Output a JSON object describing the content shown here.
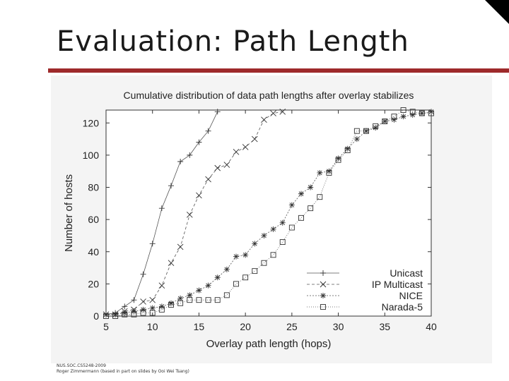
{
  "slide": {
    "title": "Evaluation: Path Length",
    "footer_line1": "NUS.SOC.CS5248-2009",
    "footer_line2": "Roger Zimmermann (based in part on slides by Ooi Wei Tsang)"
  },
  "colors": {
    "accent": "#9e2a2b",
    "chart_bg": "#f4f4f4"
  },
  "chart_data": {
    "type": "line",
    "title": "Cumulative distribution of data path lengths after overlay stabilizes",
    "xlabel": "Overlay path length (hops)",
    "ylabel": "Number of hosts",
    "xlim": [
      5,
      40
    ],
    "ylim": [
      0,
      128
    ],
    "xticks": [
      5,
      10,
      15,
      20,
      25,
      30,
      35,
      40
    ],
    "yticks": [
      0,
      20,
      40,
      60,
      80,
      100,
      120
    ],
    "grid": false,
    "legend_position": "bottom-right",
    "series": [
      {
        "name": "Unicast",
        "marker": "plus",
        "dash": "",
        "points": [
          [
            5,
            1
          ],
          [
            6,
            2
          ],
          [
            7,
            6
          ],
          [
            8,
            10
          ],
          [
            9,
            26
          ],
          [
            10,
            45
          ],
          [
            11,
            67
          ],
          [
            12,
            81
          ],
          [
            13,
            96
          ],
          [
            14,
            100
          ],
          [
            15,
            108
          ],
          [
            16,
            115
          ],
          [
            17,
            127
          ]
        ]
      },
      {
        "name": "IP Multicast",
        "marker": "x",
        "dash": "4 3",
        "points": [
          [
            5,
            1
          ],
          [
            6,
            1
          ],
          [
            7,
            3
          ],
          [
            8,
            4
          ],
          [
            9,
            9
          ],
          [
            10,
            10
          ],
          [
            11,
            19
          ],
          [
            12,
            33
          ],
          [
            13,
            43
          ],
          [
            14,
            63
          ],
          [
            15,
            75
          ],
          [
            16,
            85
          ],
          [
            17,
            92
          ],
          [
            18,
            94
          ],
          [
            19,
            102
          ],
          [
            20,
            105
          ],
          [
            21,
            110
          ],
          [
            22,
            122
          ],
          [
            23,
            126
          ],
          [
            24,
            127
          ]
        ]
      },
      {
        "name": "NICE",
        "marker": "asterisk",
        "dash": "2 2",
        "points": [
          [
            5,
            1
          ],
          [
            6,
            1
          ],
          [
            7,
            2
          ],
          [
            8,
            3
          ],
          [
            9,
            4
          ],
          [
            10,
            5
          ],
          [
            11,
            6
          ],
          [
            12,
            8
          ],
          [
            13,
            11
          ],
          [
            14,
            13
          ],
          [
            15,
            16
          ],
          [
            16,
            19
          ],
          [
            17,
            24
          ],
          [
            18,
            29
          ],
          [
            19,
            37
          ],
          [
            20,
            38
          ],
          [
            21,
            45
          ],
          [
            22,
            50
          ],
          [
            23,
            54
          ],
          [
            24,
            58
          ],
          [
            25,
            69
          ],
          [
            26,
            76
          ],
          [
            27,
            80
          ],
          [
            28,
            89
          ],
          [
            29,
            90
          ],
          [
            30,
            98
          ],
          [
            31,
            104
          ],
          [
            32,
            110
          ],
          [
            33,
            115
          ],
          [
            34,
            117
          ],
          [
            35,
            121
          ],
          [
            36,
            122
          ],
          [
            37,
            124
          ],
          [
            38,
            125
          ],
          [
            39,
            126
          ],
          [
            40,
            127
          ]
        ]
      },
      {
        "name": "Narada-5",
        "marker": "square",
        "dash": "1 2",
        "points": [
          [
            5,
            0
          ],
          [
            6,
            0
          ],
          [
            7,
            1
          ],
          [
            8,
            1
          ],
          [
            9,
            2
          ],
          [
            10,
            2
          ],
          [
            11,
            4
          ],
          [
            12,
            7
          ],
          [
            13,
            8
          ],
          [
            14,
            10
          ],
          [
            15,
            10
          ],
          [
            16,
            10
          ],
          [
            17,
            10
          ],
          [
            18,
            13
          ],
          [
            19,
            20
          ],
          [
            20,
            24
          ],
          [
            21,
            28
          ],
          [
            22,
            33
          ],
          [
            23,
            38
          ],
          [
            24,
            46
          ],
          [
            25,
            55
          ],
          [
            26,
            61
          ],
          [
            27,
            67
          ],
          [
            28,
            74
          ],
          [
            29,
            89
          ],
          [
            30,
            97
          ],
          [
            31,
            103
          ],
          [
            32,
            115
          ],
          [
            33,
            115
          ],
          [
            34,
            118
          ],
          [
            35,
            121
          ],
          [
            36,
            124
          ],
          [
            37,
            128
          ],
          [
            38,
            127
          ],
          [
            39,
            126
          ],
          [
            40,
            126
          ]
        ]
      }
    ]
  }
}
